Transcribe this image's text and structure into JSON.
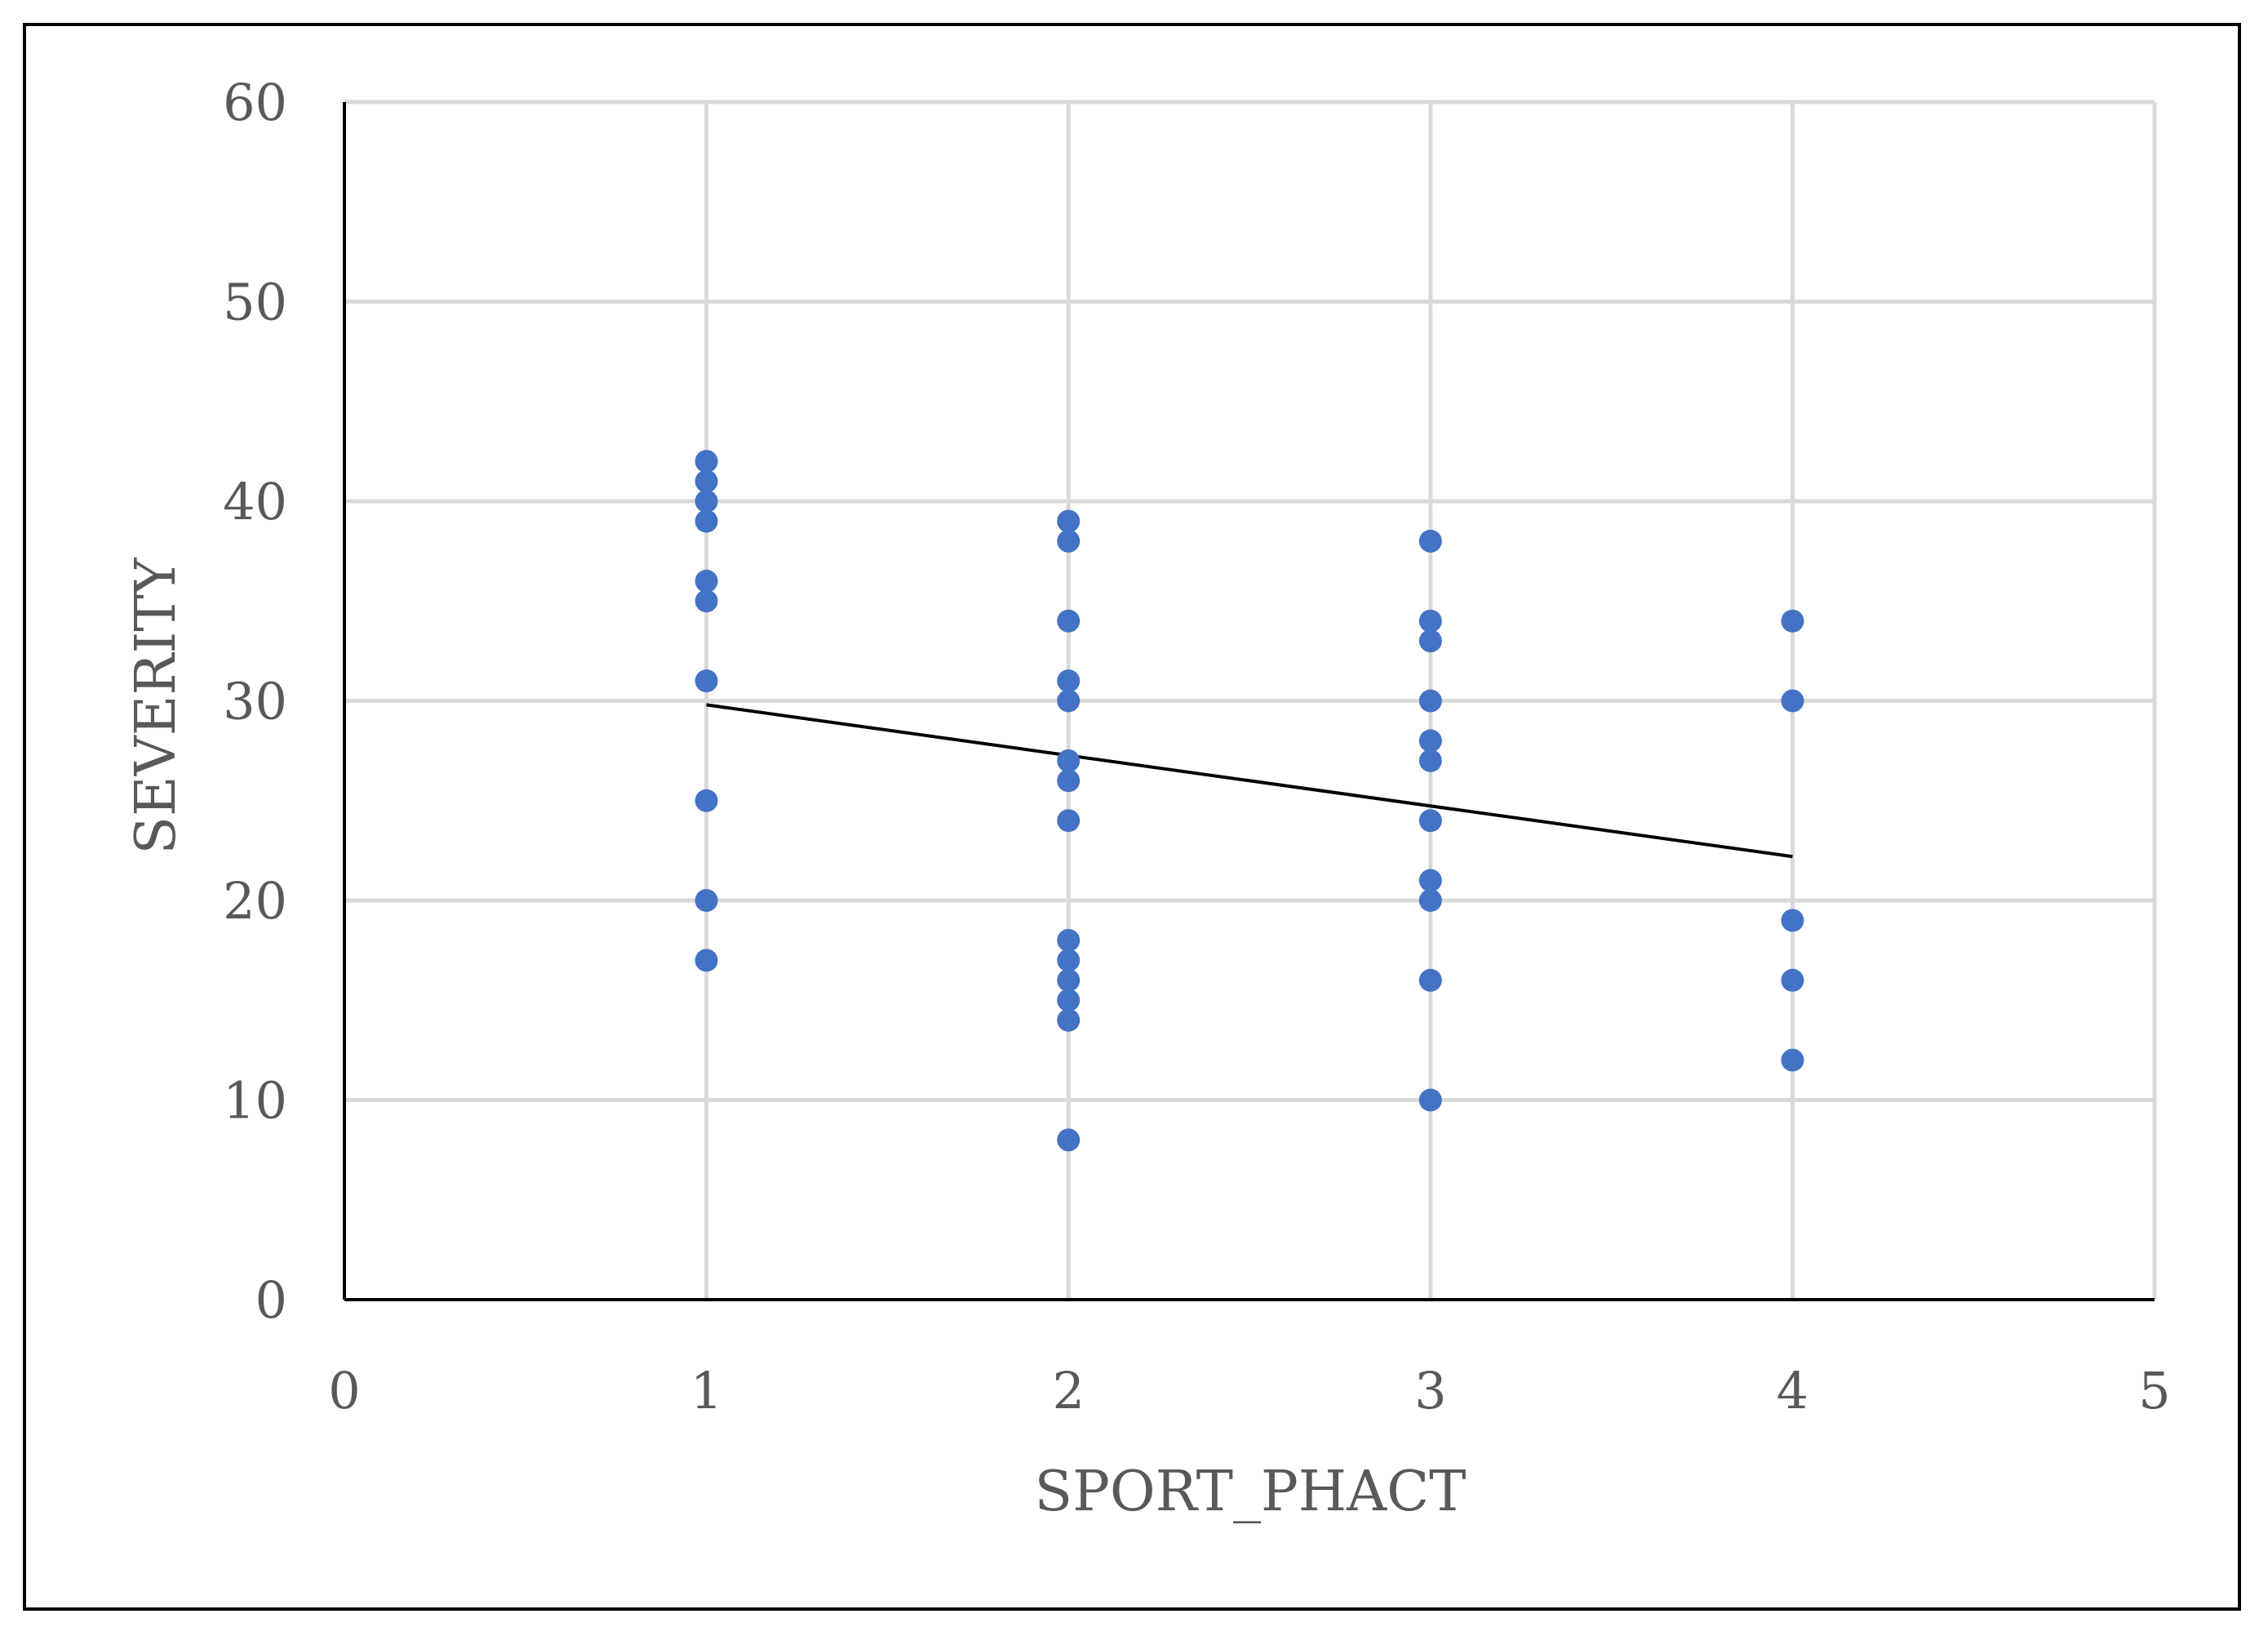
{
  "chart_data": {
    "type": "scatter",
    "title": "",
    "xlabel": "SPORT_PHACT",
    "ylabel": "SEVERITY",
    "xlim": [
      0,
      5
    ],
    "ylim": [
      0,
      60
    ],
    "x_ticks": [
      0,
      1,
      2,
      3,
      4,
      5
    ],
    "y_ticks": [
      0,
      10,
      20,
      30,
      40,
      50,
      60
    ],
    "grid": true,
    "legend": "none",
    "colors": {
      "points": "#4472C4",
      "trendline": "#000000",
      "grid": "#d9d9d9",
      "axis": "#000000",
      "text": "#595959"
    },
    "points": [
      {
        "x": 1,
        "y": 42
      },
      {
        "x": 1,
        "y": 41
      },
      {
        "x": 1,
        "y": 40
      },
      {
        "x": 1,
        "y": 39
      },
      {
        "x": 1,
        "y": 36
      },
      {
        "x": 1,
        "y": 35
      },
      {
        "x": 1,
        "y": 31
      },
      {
        "x": 1,
        "y": 25
      },
      {
        "x": 1,
        "y": 20
      },
      {
        "x": 1,
        "y": 17
      },
      {
        "x": 2,
        "y": 39
      },
      {
        "x": 2,
        "y": 38
      },
      {
        "x": 2,
        "y": 34
      },
      {
        "x": 2,
        "y": 31
      },
      {
        "x": 2,
        "y": 30
      },
      {
        "x": 2,
        "y": 27
      },
      {
        "x": 2,
        "y": 26
      },
      {
        "x": 2,
        "y": 24
      },
      {
        "x": 2,
        "y": 18
      },
      {
        "x": 2,
        "y": 17
      },
      {
        "x": 2,
        "y": 16
      },
      {
        "x": 2,
        "y": 15
      },
      {
        "x": 2,
        "y": 14
      },
      {
        "x": 2,
        "y": 8
      },
      {
        "x": 3,
        "y": 38
      },
      {
        "x": 3,
        "y": 34
      },
      {
        "x": 3,
        "y": 33
      },
      {
        "x": 3,
        "y": 30
      },
      {
        "x": 3,
        "y": 28
      },
      {
        "x": 3,
        "y": 27
      },
      {
        "x": 3,
        "y": 24
      },
      {
        "x": 3,
        "y": 21
      },
      {
        "x": 3,
        "y": 20
      },
      {
        "x": 3,
        "y": 16
      },
      {
        "x": 3,
        "y": 10
      },
      {
        "x": 4,
        "y": 34
      },
      {
        "x": 4,
        "y": 30
      },
      {
        "x": 4,
        "y": 19
      },
      {
        "x": 4,
        "y": 16
      },
      {
        "x": 4,
        "y": 12
      }
    ],
    "trendline": {
      "type": "linear",
      "start": {
        "x": 1,
        "y": 29.8
      },
      "end": {
        "x": 4,
        "y": 22.2
      }
    }
  }
}
